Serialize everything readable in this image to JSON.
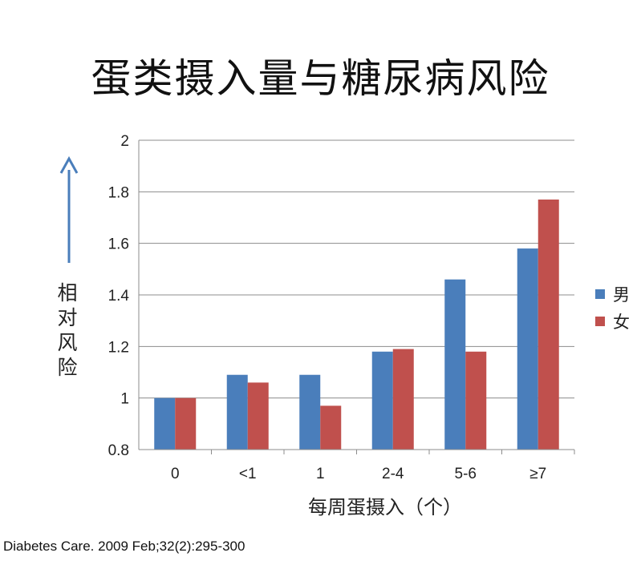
{
  "chart_data": {
    "type": "bar",
    "title": "蛋类摄入量与糖尿病风险",
    "ylabel": "相对风险",
    "xlabel": "每周蛋摄入（个）",
    "categories": [
      "0",
      "<1",
      "1",
      "2-4",
      "5-6",
      "≥7"
    ],
    "series": [
      {
        "name": "男",
        "color": "#4a7ebb",
        "values": [
          1.0,
          1.09,
          1.09,
          1.18,
          1.46,
          1.58
        ]
      },
      {
        "name": "女",
        "color": "#c0504d",
        "values": [
          1.0,
          1.06,
          0.97,
          1.19,
          1.18,
          1.77
        ]
      }
    ],
    "ylim": [
      0.8,
      2.0
    ],
    "yticks": [
      "0.8",
      "1",
      "1.2",
      "1.4",
      "1.6",
      "1.8",
      "2"
    ],
    "grid": true,
    "legend_position": "right",
    "arrow_color": "#4a7ebb"
  },
  "source": "Diabetes Care. 2009 Feb;32(2):295-300"
}
